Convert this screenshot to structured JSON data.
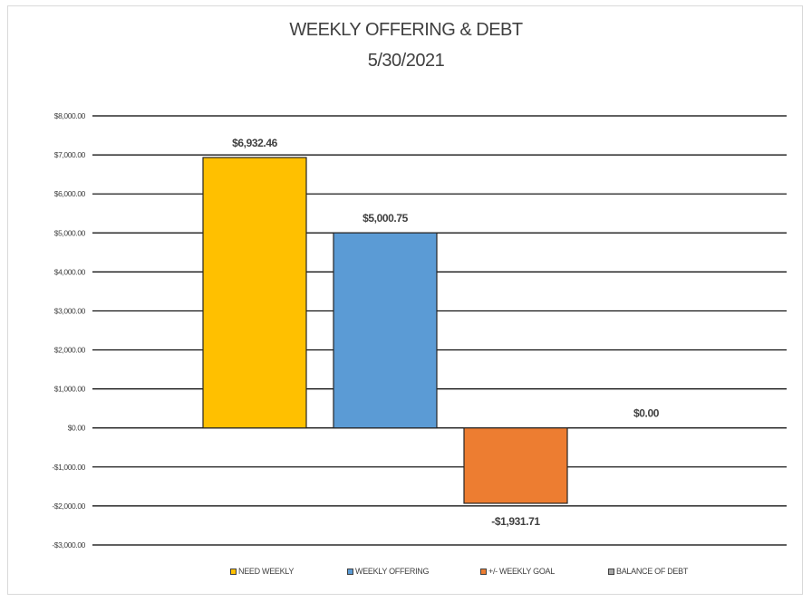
{
  "chart_data": {
    "type": "bar",
    "title": "WEEKLY OFFERING & DEBT",
    "subtitle": "5/30/2021",
    "series": [
      {
        "name": "NEED WEEKLY",
        "value": 6932.46,
        "label": "$6,932.46",
        "color": "#FFC000"
      },
      {
        "name": "WEEKLY OFFERING",
        "value": 5000.75,
        "label": "$5,000.75",
        "color": "#5B9BD5"
      },
      {
        "name": "+/- WEEKLY GOAL",
        "value": -1931.71,
        "label": "-$1,931.71",
        "color": "#ED7D31"
      },
      {
        "name": "BALANCE OF DEBT",
        "value": 0.0,
        "label": "$0.00",
        "color": "#A5A5A5"
      }
    ],
    "ylim": [
      -3000,
      8000
    ],
    "yticks": [
      8000,
      7000,
      6000,
      5000,
      4000,
      3000,
      2000,
      1000,
      0,
      -1000,
      -2000,
      -3000
    ],
    "ytick_labels": [
      "$8,000.00",
      "$7,000.00",
      "$6,000.00",
      "$5,000.00",
      "$4,000.00",
      "$3,000.00",
      "$2,000.00",
      "$1,000.00",
      "$0.00",
      "-$1,000.00",
      "-$2,000.00",
      "-$3,000.00"
    ],
    "grid": true,
    "legend_position": "bottom"
  }
}
